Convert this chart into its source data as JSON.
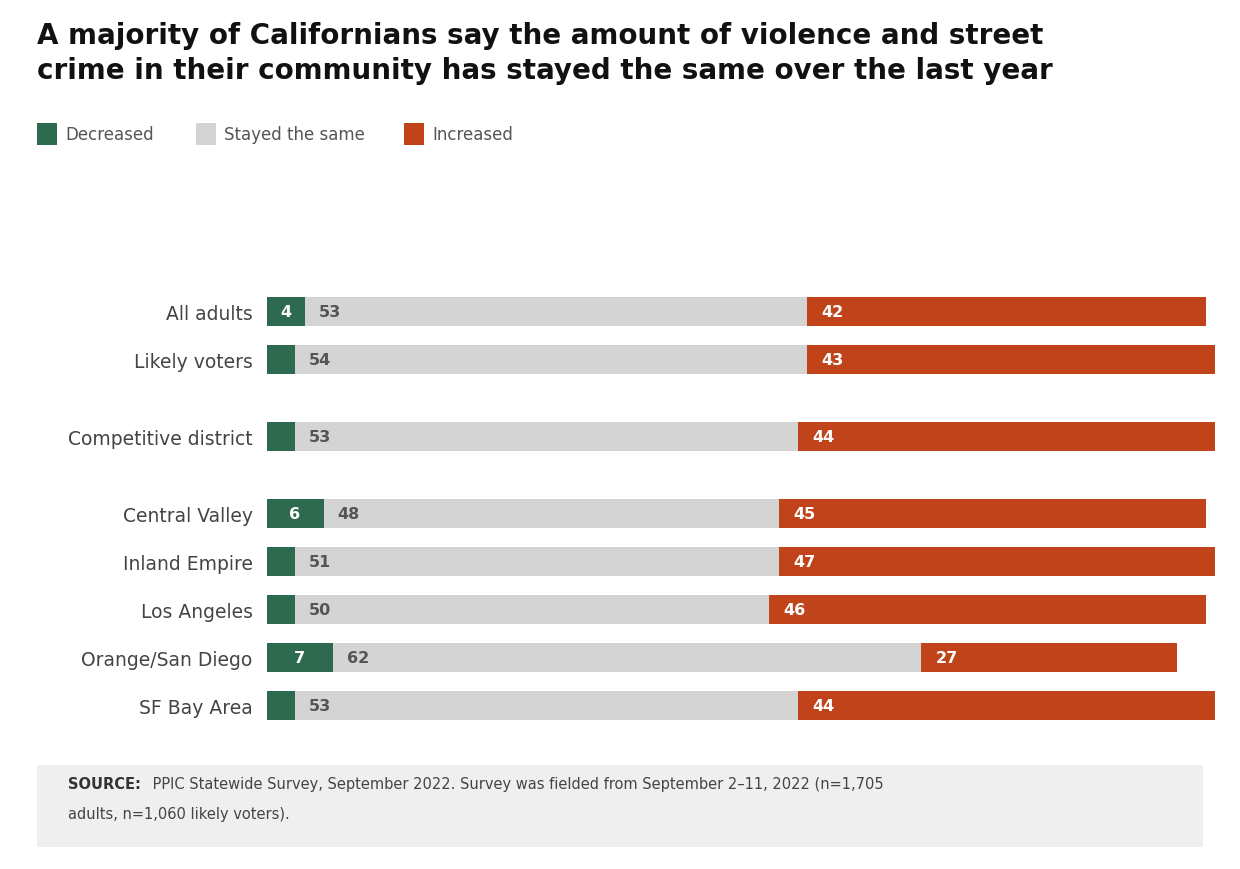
{
  "title_line1": "A majority of Californians say the amount of violence and street",
  "title_line2": "crime in their community has stayed the same over the last year",
  "categories": [
    "All adults",
    "Likely voters",
    "Competitive district",
    "Central Valley",
    "Inland Empire",
    "Los Angeles",
    "Orange/San Diego",
    "SF Bay Area"
  ],
  "decreased": [
    4,
    3,
    3,
    6,
    3,
    3,
    7,
    3
  ],
  "stayed_same": [
    53,
    54,
    53,
    48,
    51,
    50,
    62,
    53
  ],
  "increased": [
    42,
    43,
    44,
    45,
    47,
    46,
    27,
    44
  ],
  "color_decreased": "#2d6a4f",
  "color_stayed": "#d4d4d4",
  "color_increased": "#c0431a",
  "color_background": "#ffffff",
  "source_text_bold": "SOURCE:",
  "source_text_normal": " PPIC Statewide Survey, September 2022. Survey was fielded from September 2–11, 2022 (n=1,705\nadults, n=1,060 likely voters).",
  "legend_labels": [
    "Decreased",
    "Stayed the same",
    "Increased"
  ],
  "bar_height": 0.6,
  "xlim_max": 100
}
